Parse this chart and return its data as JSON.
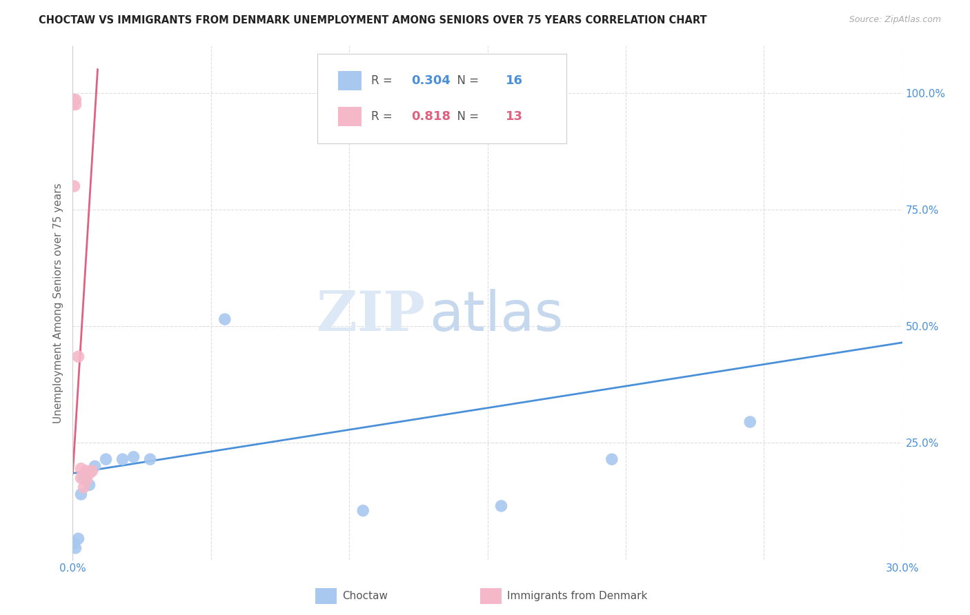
{
  "title": "CHOCTAW VS IMMIGRANTS FROM DENMARK UNEMPLOYMENT AMONG SENIORS OVER 75 YEARS CORRELATION CHART",
  "source": "Source: ZipAtlas.com",
  "ylabel": "Unemployment Among Seniors over 75 years",
  "watermark_zip": "ZIP",
  "watermark_atlas": "atlas",
  "choctaw_color": "#a8c8f0",
  "denmark_color": "#f4b8c8",
  "choctaw_line_color": "#4a90d9",
  "denmark_line_color": "#e06080",
  "choctaw_R": 0.304,
  "choctaw_N": 16,
  "denmark_R": 0.818,
  "denmark_N": 13,
  "choctaw_x": [
    0.0005,
    0.001,
    0.002,
    0.003,
    0.004,
    0.006,
    0.008,
    0.012,
    0.018,
    0.022,
    0.028,
    0.055,
    0.105,
    0.155,
    0.195,
    0.245
  ],
  "choctaw_y": [
    0.035,
    0.025,
    0.045,
    0.14,
    0.175,
    0.16,
    0.2,
    0.215,
    0.215,
    0.22,
    0.215,
    0.515,
    0.105,
    0.115,
    0.215,
    0.295
  ],
  "denmark_x": [
    0.0,
    0.0,
    0.0005,
    0.001,
    0.001,
    0.002,
    0.003,
    0.003,
    0.004,
    0.005,
    0.005,
    0.006,
    0.007
  ],
  "denmark_y": [
    0.975,
    0.985,
    0.8,
    0.975,
    0.985,
    0.435,
    0.195,
    0.175,
    0.155,
    0.17,
    0.19,
    0.185,
    0.19
  ],
  "choctaw_trend_x": [
    0.0,
    0.3
  ],
  "choctaw_trend_y": [
    0.185,
    0.465
  ],
  "denmark_trend_x": [
    0.0,
    0.009
  ],
  "denmark_trend_y": [
    0.185,
    1.05
  ],
  "xlim": [
    0.0,
    0.3
  ],
  "ylim": [
    0.0,
    1.1
  ],
  "background_color": "#ffffff",
  "grid_color": "#dddddd",
  "tick_color": "#4a90d9",
  "title_color": "#222222",
  "legend_label_choctaw": "Choctaw",
  "legend_label_denmark": "Immigrants from Denmark"
}
